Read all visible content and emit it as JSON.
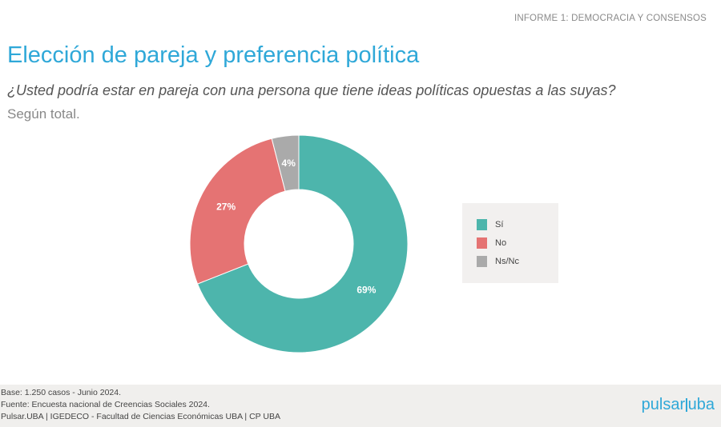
{
  "header": {
    "report_label": "INFORME 1: DEMOCRACIA Y CONSENSOS",
    "title": "Elección de pareja y preferencia política",
    "question": "¿Usted podría estar en pareja con una persona que tiene ideas políticas opuestas a las suyas?",
    "subtitle": "Según total."
  },
  "chart_data": {
    "type": "pie",
    "style": "donut",
    "title": "Elección de pareja y preferencia política",
    "categories": [
      "Sí",
      "No",
      "Ns/Nc"
    ],
    "values": [
      69,
      27,
      4
    ],
    "labels": [
      "69%",
      "27%",
      "4%"
    ],
    "unit": "%",
    "colors": [
      "#4db5ac",
      "#e57373",
      "#aaaaaa"
    ],
    "legend_position": "right"
  },
  "legend": {
    "items": [
      {
        "label": "Sí",
        "color": "#4db5ac"
      },
      {
        "label": "No",
        "color": "#e57373"
      },
      {
        "label": "Ns/Nc",
        "color": "#aaaaaa"
      }
    ]
  },
  "footer": {
    "base": "Base: 1.250 casos - Junio 2024.",
    "source": "Fuente: Encuesta nacional de Creencias Sociales 2024.",
    "credits": "Pulsar.UBA | IGEDECO - Facultad de Ciencias Económicas UBA | CP UBA",
    "logo_left": "pulsar",
    "logo_right": "uba"
  },
  "colors": {
    "accent": "#2fa8d8",
    "si": "#4db5ac",
    "no": "#e57373",
    "nsnc": "#aaaaaa"
  }
}
